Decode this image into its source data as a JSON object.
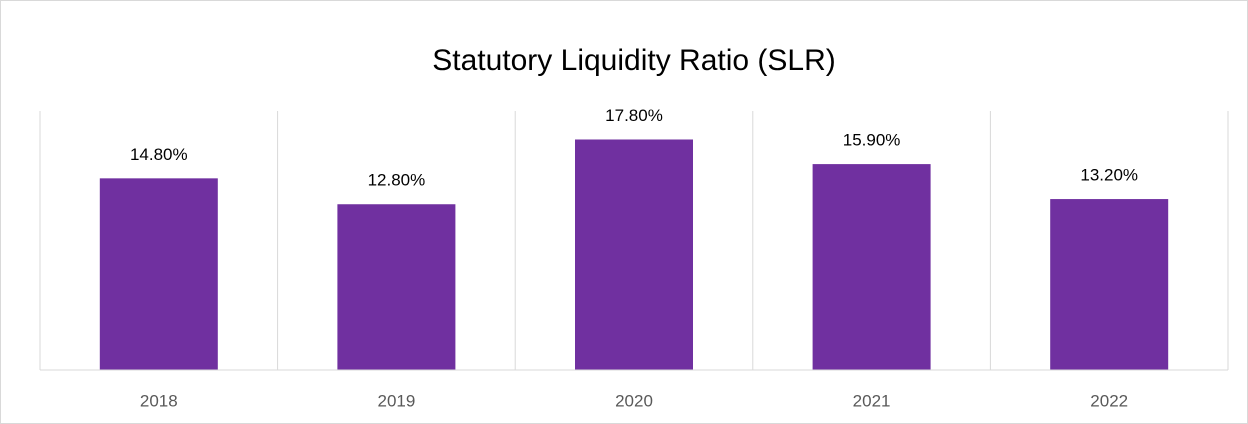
{
  "chart_data": {
    "type": "bar",
    "title": "Statutory Liquidity Ratio (SLR)",
    "categories": [
      "2018",
      "2019",
      "2020",
      "2021",
      "2022"
    ],
    "values": [
      14.8,
      12.8,
      17.8,
      15.9,
      13.2
    ],
    "value_labels": [
      "14.80%",
      "12.80%",
      "17.80%",
      "15.90%",
      "13.20%"
    ],
    "color": "#7030a0",
    "ylim": [
      0,
      20
    ]
  }
}
